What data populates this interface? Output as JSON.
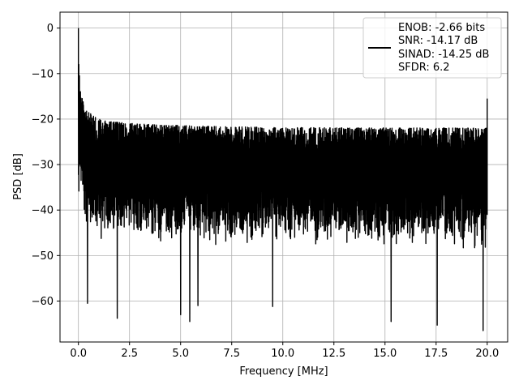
{
  "chart_data": {
    "type": "line",
    "title": "",
    "xlabel": "Frequency [MHz]",
    "ylabel": "PSD [dB]",
    "xlim": [
      -0.9,
      21.0
    ],
    "ylim": [
      -69,
      3.5
    ],
    "x_ticks": [
      0.0,
      2.5,
      5.0,
      7.5,
      10.0,
      12.5,
      15.0,
      17.5,
      20.0
    ],
    "x_tick_labels": [
      "0.0",
      "2.5",
      "5.0",
      "7.5",
      "10.0",
      "12.5",
      "15.0",
      "17.5",
      "20.0"
    ],
    "y_ticks": [
      0,
      -10,
      -20,
      -30,
      -40,
      -50,
      -60
    ],
    "y_tick_labels": [
      "0",
      "−10",
      "−20",
      "−30",
      "−40",
      "−50",
      "−60"
    ],
    "grid": true,
    "legend_position": "top-right",
    "series": [
      {
        "name": "",
        "color": "#000000",
        "legend_lines": [
          "ENOB: -2.66 bits",
          "SNR: -14.17 dB",
          "SINAD: -14.25 dB",
          "SFDR: 6.2"
        ],
        "x_range": [
          0.0,
          20.0
        ],
        "peaks": [
          [
            0.0,
            0.0
          ],
          [
            0.02,
            -8.0
          ],
          [
            0.05,
            -10.5
          ],
          [
            0.1,
            -14.0
          ],
          [
            20.0,
            -15.5
          ]
        ],
        "noise_floor": {
          "upper_envelope_db": -22,
          "lower_envelope_db": -45,
          "mean_db": -31
        },
        "deep_dips": [
          [
            0.45,
            -60.5
          ],
          [
            1.9,
            -63.8
          ],
          [
            5.0,
            -63.0
          ],
          [
            5.45,
            -64.5
          ],
          [
            5.85,
            -61.0
          ],
          [
            9.5,
            -61.2
          ],
          [
            15.3,
            -64.5
          ],
          [
            17.55,
            -65.3
          ],
          [
            19.8,
            -66.5
          ]
        ]
      }
    ]
  }
}
